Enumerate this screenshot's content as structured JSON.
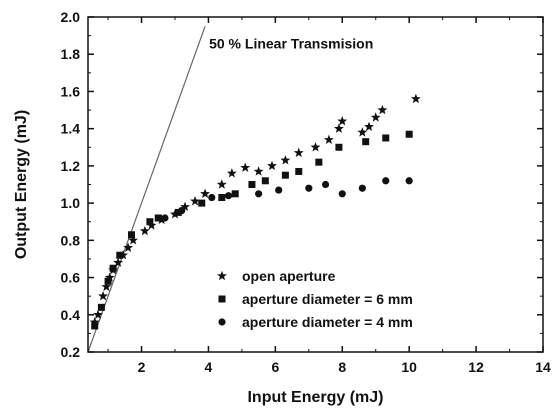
{
  "chart_data": {
    "type": "scatter",
    "xlabel": "Input Energy (mJ)",
    "ylabel": "Output Energy (mJ)",
    "xlim": [
      0.4,
      14
    ],
    "ylim": [
      0.2,
      2.0
    ],
    "xticks": [
      2,
      4,
      6,
      8,
      10,
      12,
      14
    ],
    "yticks": [
      0.2,
      0.4,
      0.6,
      0.8,
      1.0,
      1.2,
      1.4,
      1.6,
      1.8,
      2.0
    ],
    "xtick_labels": [
      "2",
      "4",
      "6",
      "8",
      "10",
      "12",
      "14"
    ],
    "ytick_labels": [
      "0.2",
      "0.4",
      "0.6",
      "0.8",
      "1.0",
      "1.2",
      "1.4",
      "1.6",
      "1.8",
      "2.0"
    ],
    "grid": false,
    "legend_position": "bottom-right",
    "reference_line": {
      "label": "50 %  Linear Transmision",
      "slope": 0.5,
      "x": [
        0.4,
        3.9
      ],
      "y": [
        0.2,
        1.95
      ]
    },
    "series": [
      {
        "name": "open aperture",
        "marker": "star",
        "points": [
          [
            0.6,
            0.36
          ],
          [
            0.7,
            0.4
          ],
          [
            0.85,
            0.5
          ],
          [
            0.95,
            0.55
          ],
          [
            1.05,
            0.6
          ],
          [
            1.15,
            0.64
          ],
          [
            1.3,
            0.68
          ],
          [
            1.45,
            0.72
          ],
          [
            1.6,
            0.76
          ],
          [
            1.75,
            0.8
          ],
          [
            2.1,
            0.85
          ],
          [
            2.3,
            0.88
          ],
          [
            2.6,
            0.91
          ],
          [
            3.0,
            0.94
          ],
          [
            3.3,
            0.98
          ],
          [
            3.6,
            1.01
          ],
          [
            3.9,
            1.05
          ],
          [
            4.4,
            1.1
          ],
          [
            4.7,
            1.16
          ],
          [
            5.1,
            1.19
          ],
          [
            5.5,
            1.17
          ],
          [
            5.9,
            1.2
          ],
          [
            6.3,
            1.23
          ],
          [
            6.7,
            1.27
          ],
          [
            7.2,
            1.3
          ],
          [
            7.6,
            1.34
          ],
          [
            7.9,
            1.4
          ],
          [
            8.0,
            1.44
          ],
          [
            8.6,
            1.38
          ],
          [
            8.8,
            1.41
          ],
          [
            9.0,
            1.46
          ],
          [
            9.2,
            1.5
          ],
          [
            10.2,
            1.56
          ]
        ]
      },
      {
        "name": "aperture diameter = 6 mm",
        "marker": "square",
        "points": [
          [
            0.6,
            0.34
          ],
          [
            0.8,
            0.44
          ],
          [
            1.0,
            0.58
          ],
          [
            1.15,
            0.65
          ],
          [
            1.35,
            0.72
          ],
          [
            1.7,
            0.83
          ],
          [
            2.25,
            0.9
          ],
          [
            2.5,
            0.92
          ],
          [
            3.1,
            0.95
          ],
          [
            3.8,
            1.0
          ],
          [
            4.4,
            1.03
          ],
          [
            4.8,
            1.05
          ],
          [
            5.3,
            1.1
          ],
          [
            5.7,
            1.12
          ],
          [
            6.3,
            1.15
          ],
          [
            6.7,
            1.17
          ],
          [
            7.3,
            1.22
          ],
          [
            7.9,
            1.3
          ],
          [
            8.7,
            1.33
          ],
          [
            9.3,
            1.35
          ],
          [
            10.0,
            1.37
          ]
        ]
      },
      {
        "name": "aperture diameter = 4 mm",
        "marker": "circle",
        "points": [
          [
            2.7,
            0.92
          ],
          [
            3.2,
            0.96
          ],
          [
            4.1,
            1.03
          ],
          [
            4.6,
            1.04
          ],
          [
            5.5,
            1.05
          ],
          [
            6.1,
            1.07
          ],
          [
            7.0,
            1.08
          ],
          [
            7.5,
            1.1
          ],
          [
            8.0,
            1.05
          ],
          [
            8.6,
            1.08
          ],
          [
            9.3,
            1.12
          ],
          [
            10.0,
            1.12
          ]
        ]
      }
    ]
  }
}
